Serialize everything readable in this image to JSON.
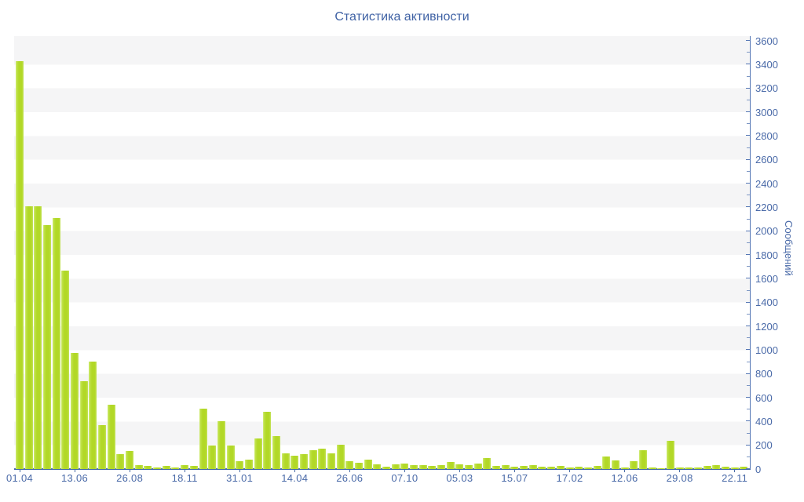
{
  "chart": {
    "title": "Статистика активности",
    "y_axis_title": "Сообщений"
  },
  "chart_data": {
    "type": "bar",
    "title": "Статистика активности",
    "xlabel": "",
    "ylabel": "Сообщений",
    "ylim": [
      0,
      3600
    ],
    "y_tick_step": 200,
    "y_minor_tick_step": 100,
    "grid": "alternating horizontal stripes every 200 units",
    "legend": "none",
    "x_tick_labels": [
      "01.04",
      "13.06",
      "26.08",
      "18.11",
      "31.01",
      "14.04",
      "26.06",
      "07.10",
      "05.03",
      "15.07",
      "17.02",
      "12.06",
      "29.08",
      "22.11"
    ],
    "x_label_every_n_bars": 6,
    "values": [
      3430,
      2210,
      2210,
      2050,
      2110,
      1670,
      975,
      740,
      905,
      370,
      540,
      125,
      150,
      35,
      25,
      15,
      25,
      15,
      30,
      25,
      505,
      200,
      405,
      200,
      65,
      80,
      255,
      480,
      280,
      135,
      115,
      125,
      160,
      170,
      130,
      205,
      65,
      50,
      80,
      40,
      20,
      40,
      45,
      30,
      30,
      25,
      30,
      60,
      40,
      30,
      45,
      90,
      25,
      35,
      20,
      25,
      30,
      20,
      20,
      25,
      15,
      20,
      15,
      25,
      105,
      75,
      15,
      65,
      160,
      10,
      5,
      235,
      10,
      15,
      10,
      25,
      30,
      20,
      15,
      20
    ],
    "colors": {
      "bar": "#b2d827",
      "bar_highlight": "#d6ee82",
      "stripe": "#f5f5f6",
      "axis_line": "#5577b5",
      "baseline": "#476ca8",
      "tick_label": "#4a6aa8",
      "title": "#3e61a4",
      "background": "#ffffff"
    }
  }
}
